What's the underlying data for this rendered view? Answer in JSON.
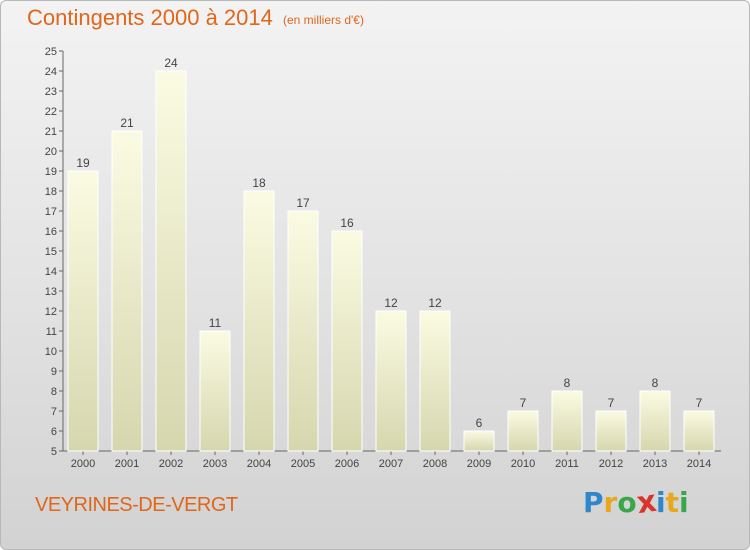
{
  "header": {
    "title": "Contingents 2000 à 2014",
    "unit": "(en milliers d'€)"
  },
  "footer": {
    "commune": "VEYRINES-DE-VERGT",
    "logo": {
      "letters": [
        "P",
        "r",
        "o",
        "x",
        "i",
        "t",
        "i"
      ],
      "colors": [
        "#2f86c8",
        "#e8a81d",
        "#3aa64a",
        "#d9342b",
        "#2f86c8",
        "#e8a81d",
        "#3aa64a"
      ]
    }
  },
  "chart_data": {
    "type": "bar",
    "title": "Contingents 2000 à 2014",
    "subtitle": "(en milliers d'€)",
    "xlabel": "",
    "ylabel": "",
    "categories": [
      "2000",
      "2001",
      "2002",
      "2003",
      "2004",
      "2005",
      "2006",
      "2007",
      "2008",
      "2009",
      "2010",
      "2011",
      "2012",
      "2013",
      "2014"
    ],
    "values": [
      19,
      21,
      24,
      11,
      18,
      17,
      16,
      12,
      12,
      6,
      7,
      8,
      7,
      8,
      7
    ],
    "ylim": [
      5,
      25
    ],
    "yticks": [
      5,
      6,
      7,
      8,
      9,
      10,
      11,
      12,
      13,
      14,
      15,
      16,
      17,
      18,
      19,
      20,
      21,
      22,
      23,
      24,
      25
    ],
    "grid": false,
    "legend": "none",
    "bar_color": "#f3f3cc"
  }
}
